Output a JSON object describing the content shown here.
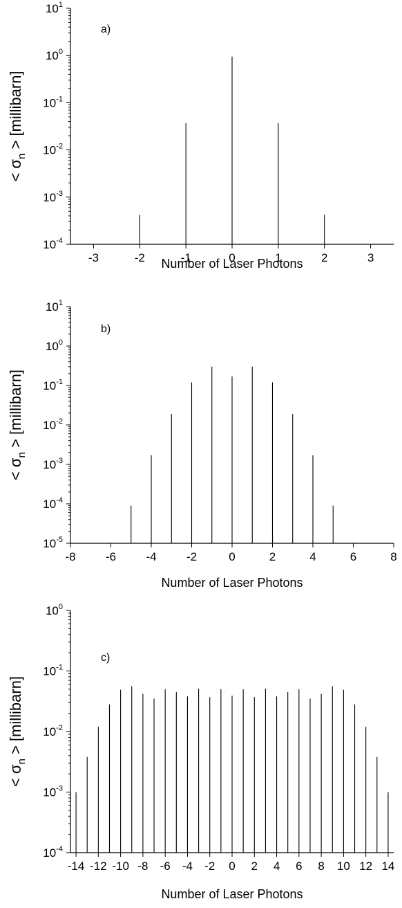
{
  "chart_data": [
    {
      "type": "bar",
      "panel_label": "a)",
      "xlabel": "Number of Laser Photons",
      "ylabel_prefix": "< σ",
      "ylabel_sub": "n",
      "ylabel_suffix": " > [millibarn]",
      "y_scale": "log",
      "ylim": [
        0.0001,
        10
      ],
      "xlim": [
        -3.5,
        3.5
      ],
      "x_ticks": [
        -3,
        -2,
        -1,
        0,
        1,
        2,
        3
      ],
      "y_tick_exponents": [
        -4,
        -3,
        -2,
        -1,
        0,
        1
      ],
      "x": [
        -2,
        -1,
        0,
        1,
        2
      ],
      "values": [
        0.00042,
        0.037,
        0.95,
        0.037,
        0.00042
      ]
    },
    {
      "type": "bar",
      "panel_label": "b)",
      "xlabel": "Number of Laser Photons",
      "ylabel_prefix": "< σ",
      "ylabel_sub": "n",
      "ylabel_suffix": " > [millibarn]",
      "y_scale": "log",
      "ylim": [
        1e-05,
        10
      ],
      "xlim": [
        -8,
        8
      ],
      "x_ticks": [
        -8,
        -6,
        -4,
        -2,
        0,
        2,
        4,
        6,
        8
      ],
      "y_tick_exponents": [
        -5,
        -4,
        -3,
        -2,
        -1,
        0,
        1
      ],
      "x": [
        -5,
        -4,
        -3,
        -2,
        -1,
        0,
        1,
        2,
        3,
        4,
        5
      ],
      "values": [
        9e-05,
        0.0017,
        0.019,
        0.12,
        0.3,
        0.17,
        0.3,
        0.12,
        0.019,
        0.0017,
        9e-05
      ]
    },
    {
      "type": "bar",
      "panel_label": "c)",
      "xlabel": "Number of Laser Photons",
      "ylabel_prefix": "< σ",
      "ylabel_sub": "n",
      "ylabel_suffix": " > [millibarn]",
      "y_scale": "log",
      "ylim": [
        0.0001,
        1
      ],
      "xlim": [
        -14.5,
        14.5
      ],
      "x_ticks": [
        -14,
        -12,
        -10,
        -8,
        -6,
        -4,
        -2,
        0,
        2,
        4,
        6,
        8,
        10,
        12,
        14
      ],
      "y_tick_exponents": [
        -4,
        -3,
        -2,
        -1,
        0
      ],
      "x": [
        -14,
        -13,
        -12,
        -11,
        -10,
        -9,
        -8,
        -7,
        -6,
        -5,
        -4,
        -3,
        -2,
        -1,
        0,
        1,
        2,
        3,
        4,
        5,
        6,
        7,
        8,
        9,
        10,
        11,
        12,
        13,
        14
      ],
      "values": [
        0.001,
        0.0038,
        0.012,
        0.028,
        0.049,
        0.056,
        0.042,
        0.035,
        0.05,
        0.045,
        0.038,
        0.051,
        0.037,
        0.05,
        0.039,
        0.05,
        0.037,
        0.051,
        0.038,
        0.045,
        0.05,
        0.035,
        0.042,
        0.056,
        0.049,
        0.028,
        0.012,
        0.0038,
        0.001
      ]
    }
  ]
}
